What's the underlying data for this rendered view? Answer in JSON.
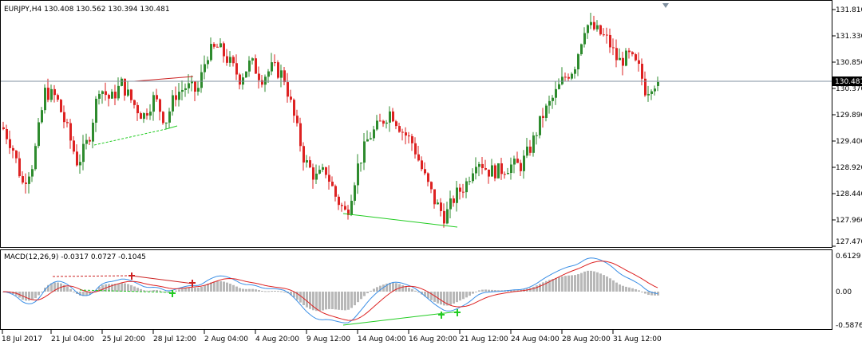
{
  "main_chart": {
    "title": "EURJPY,H4  130.408 130.562 130.394 130.481",
    "current_price": "130.481",
    "price_labels": [
      "131.810",
      "131.330",
      "130.850",
      "130.370",
      "129.890",
      "129.400",
      "128.920",
      "128.440",
      "127.960",
      "127.470"
    ]
  },
  "macd_panel": {
    "title": "MACD(12,26,9) -0.0317 0.0727 -0.1045",
    "labels": [
      "0.6129",
      "0.00",
      "-0.5876"
    ]
  },
  "time_labels": [
    "18 Jul 2017",
    "21 Jul 04:00",
    "25 Jul 20:00",
    "28 Jul 12:00",
    "2 Aug 04:00",
    "4 Aug 20:00",
    "9 Aug 12:00",
    "14 Aug 04:00",
    "16 Aug 20:00",
    "21 Aug 12:00",
    "24 Aug 04:00",
    "28 Aug 20:00",
    "31 Aug 12:00"
  ],
  "colors": {
    "bull": "#2e8b2e",
    "bear": "#dd2222",
    "macd_main": "#3b8fe6",
    "macd_signal": "#dd2222",
    "histogram": "#b8b8b8",
    "trend_green": "#22cc22",
    "trend_red": "#cc2222",
    "price_line": "#8090a0"
  },
  "chart_data": {
    "type": "candlestick",
    "symbol": "EURJPY",
    "timeframe": "H4",
    "ohlc_last": {
      "open": 130.408,
      "high": 130.562,
      "low": 130.394,
      "close": 130.481
    },
    "price_range": [
      127.47,
      131.81
    ],
    "current_price": 130.481,
    "close_path": [
      {
        "x": 2,
        "y": 129.65
      },
      {
        "x": 14,
        "y": 129.3
      },
      {
        "x": 27,
        "y": 128.62
      },
      {
        "x": 40,
        "y": 129.0
      },
      {
        "x": 55,
        "y": 130.3
      },
      {
        "x": 69,
        "y": 130.2
      },
      {
        "x": 83,
        "y": 129.6
      },
      {
        "x": 96,
        "y": 128.98
      },
      {
        "x": 110,
        "y": 129.45
      },
      {
        "x": 123,
        "y": 130.4
      },
      {
        "x": 137,
        "y": 130.15
      },
      {
        "x": 151,
        "y": 130.45
      },
      {
        "x": 165,
        "y": 130.1
      },
      {
        "x": 178,
        "y": 129.85
      },
      {
        "x": 192,
        "y": 130.2
      },
      {
        "x": 206,
        "y": 129.75
      },
      {
        "x": 218,
        "y": 130.25
      },
      {
        "x": 232,
        "y": 130.4
      },
      {
        "x": 246,
        "y": 130.3
      },
      {
        "x": 258,
        "y": 131.0
      },
      {
        "x": 272,
        "y": 131.12
      },
      {
        "x": 286,
        "y": 130.85
      },
      {
        "x": 299,
        "y": 130.55
      },
      {
        "x": 313,
        "y": 130.85
      },
      {
        "x": 326,
        "y": 130.55
      },
      {
        "x": 340,
        "y": 130.75
      },
      {
        "x": 354,
        "y": 130.6
      },
      {
        "x": 366,
        "y": 129.9
      },
      {
        "x": 380,
        "y": 129.05
      },
      {
        "x": 394,
        "y": 128.72
      },
      {
        "x": 407,
        "y": 128.85
      },
      {
        "x": 420,
        "y": 128.35
      },
      {
        "x": 433,
        "y": 128.05
      },
      {
        "x": 446,
        "y": 128.9
      },
      {
        "x": 460,
        "y": 129.45
      },
      {
        "x": 474,
        "y": 129.7
      },
      {
        "x": 488,
        "y": 129.95
      },
      {
        "x": 502,
        "y": 129.6
      },
      {
        "x": 516,
        "y": 129.35
      },
      {
        "x": 529,
        "y": 128.8
      },
      {
        "x": 543,
        "y": 128.3
      },
      {
        "x": 556,
        "y": 128.0
      },
      {
        "x": 569,
        "y": 128.4
      },
      {
        "x": 582,
        "y": 128.6
      },
      {
        "x": 596,
        "y": 129.1
      },
      {
        "x": 610,
        "y": 128.85
      },
      {
        "x": 624,
        "y": 128.85
      },
      {
        "x": 638,
        "y": 128.95
      },
      {
        "x": 651,
        "y": 128.95
      },
      {
        "x": 664,
        "y": 129.3
      },
      {
        "x": 678,
        "y": 129.85
      },
      {
        "x": 692,
        "y": 130.2
      },
      {
        "x": 705,
        "y": 130.55
      },
      {
        "x": 718,
        "y": 130.75
      },
      {
        "x": 732,
        "y": 131.55
      },
      {
        "x": 746,
        "y": 131.42
      },
      {
        "x": 760,
        "y": 131.25
      },
      {
        "x": 773,
        "y": 130.85
      },
      {
        "x": 787,
        "y": 130.95
      },
      {
        "x": 800,
        "y": 130.7
      },
      {
        "x": 808,
        "y": 130.3
      },
      {
        "x": 815,
        "y": 130.45
      },
      {
        "x": 822,
        "y": 130.48
      }
    ],
    "macd": {
      "params": "12,26,9",
      "main": -0.0317,
      "signal": 0.0727,
      "histogram": -0.1045,
      "range": [
        -0.5876,
        0.6129
      ]
    }
  }
}
